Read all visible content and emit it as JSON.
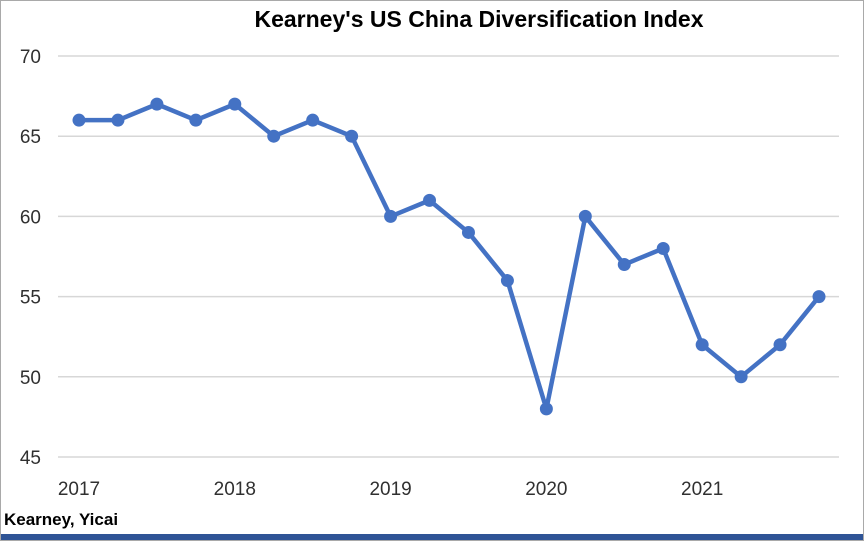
{
  "chart_data": {
    "type": "line",
    "title": "Kearney's US China Diversification Index",
    "source": "Kearney, Yicai",
    "x": [
      "2017 Q1",
      "2017 Q2",
      "2017 Q3",
      "2017 Q4",
      "2018 Q1",
      "2018 Q2",
      "2018 Q3",
      "2018 Q4",
      "2019 Q1",
      "2019 Q2",
      "2019 Q3",
      "2019 Q4",
      "2020 Q1",
      "2020 Q2",
      "2020 Q3",
      "2020 Q4",
      "2021 Q1",
      "2021 Q2",
      "2021 Q3",
      "2021 Q4"
    ],
    "series": [
      {
        "name": "US China Diversification Index",
        "color": "#4472C4",
        "values": [
          66,
          66,
          67,
          66,
          67,
          65,
          66,
          65,
          60,
          61,
          59,
          56,
          48,
          60,
          57,
          58,
          52,
          50,
          52,
          55
        ]
      }
    ],
    "ylim": [
      45,
      70
    ],
    "yticks": [
      45,
      50,
      55,
      60,
      65,
      70
    ],
    "xticks": [
      {
        "index": 0,
        "label": "2017"
      },
      {
        "index": 4,
        "label": "2018"
      },
      {
        "index": 8,
        "label": "2019"
      },
      {
        "index": 12,
        "label": "2020"
      },
      {
        "index": 16,
        "label": "2021"
      }
    ],
    "grid": "horizontal",
    "legend": "none",
    "marker": "circle",
    "colors": {
      "line": "#4472C4",
      "gridline": "#D7D7D7",
      "axis_text": "#303030",
      "title_text": "#000000",
      "bottom_bar": "#2F5496",
      "frame_border": "#A9A9A9",
      "background": "#FFFFFF"
    }
  }
}
